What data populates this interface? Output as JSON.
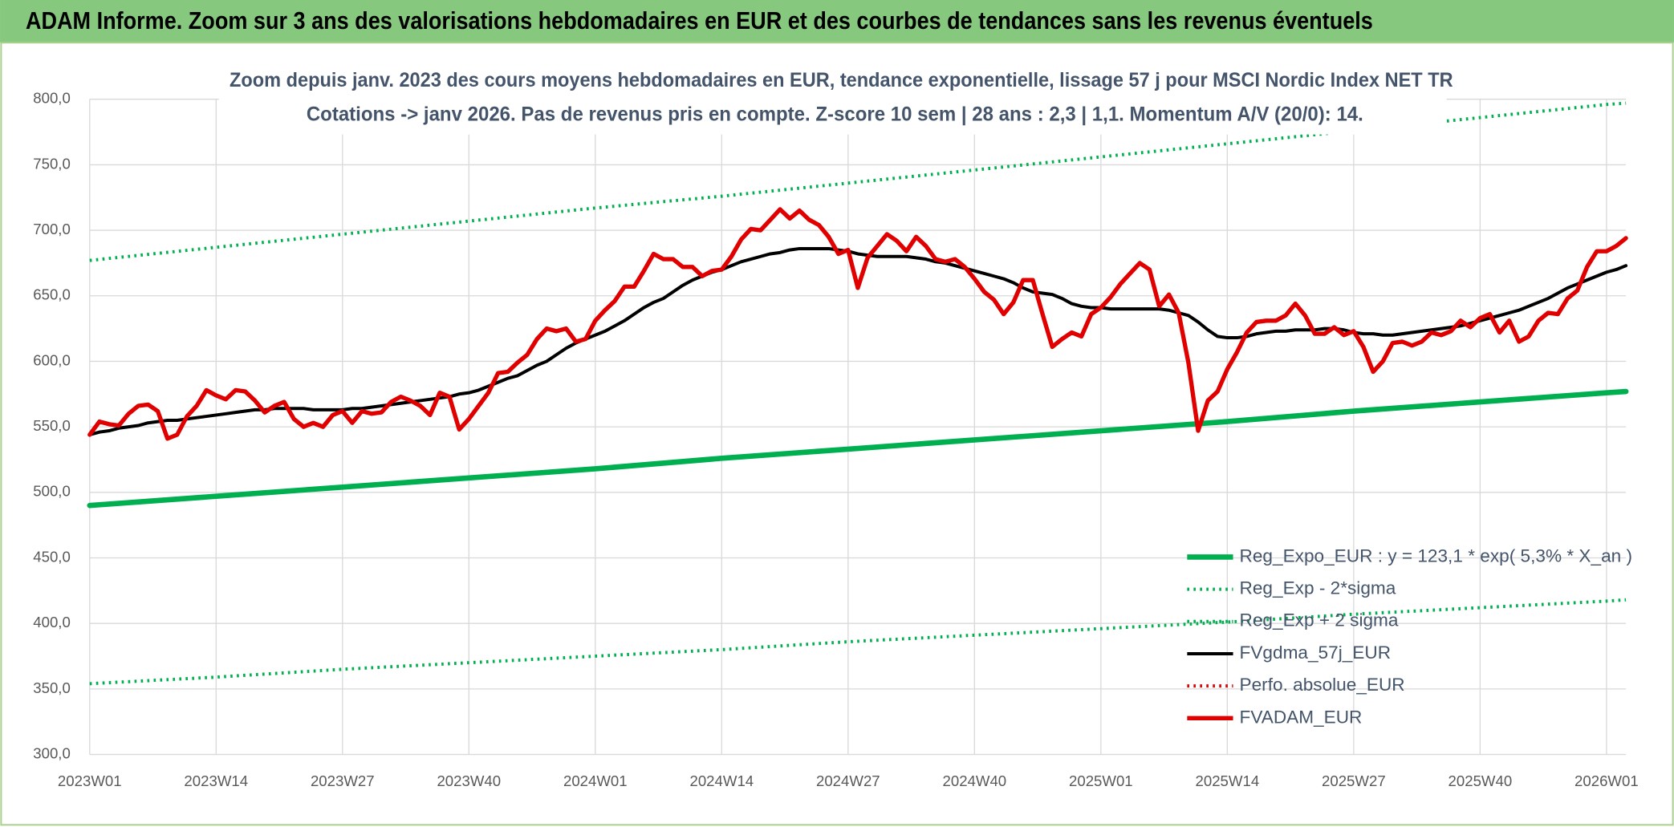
{
  "header": {
    "title": "ADAM Informe. Zoom sur 3 ans des valorisations hebdomadaires en EUR et des courbes de tendances sans les revenus éventuels"
  },
  "chart_data": {
    "type": "line",
    "title": "Zoom depuis janv. 2023 des cours moyens hebdomadaires en EUR, tendance exponentielle, lissage 57 j pour MSCI Nordic Index NET TR",
    "subtitle": "Cotations -> janv 2026. Pas de revenus pris en compte. Z-score 10 sem | 28 ans : 2,3 | 1,1. Momentum A/V (20/0): 14.",
    "categories": [
      "2023W01",
      null,
      null,
      null,
      null,
      null,
      null,
      null,
      null,
      null,
      null,
      null,
      null,
      "2023W14",
      null,
      null,
      null,
      null,
      null,
      null,
      null,
      null,
      null,
      null,
      null,
      null,
      "2023W27",
      null,
      null,
      null,
      null,
      null,
      null,
      null,
      null,
      null,
      null,
      null,
      null,
      "2023W40",
      null,
      null,
      null,
      null,
      null,
      null,
      null,
      null,
      null,
      null,
      null,
      null,
      "2024W01",
      null,
      null,
      null,
      null,
      null,
      null,
      null,
      null,
      null,
      null,
      null,
      null,
      "2024W14",
      null,
      null,
      null,
      null,
      null,
      null,
      null,
      null,
      null,
      null,
      null,
      null,
      "2024W27",
      null,
      null,
      null,
      null,
      null,
      null,
      null,
      null,
      null,
      null,
      null,
      null,
      "2024W40",
      null,
      null,
      null,
      null,
      null,
      null,
      null,
      null,
      null,
      null,
      null,
      null,
      "2025W01",
      null,
      null,
      null,
      null,
      null,
      null,
      null,
      null,
      null,
      null,
      null,
      null,
      "2025W14",
      null,
      null,
      null,
      null,
      null,
      null,
      null,
      null,
      null,
      null,
      null,
      null,
      "2025W27",
      null,
      null,
      null,
      null,
      null,
      null,
      null,
      null,
      null,
      null,
      null,
      null,
      "2025W40",
      null,
      null,
      null,
      null,
      null,
      null,
      null,
      null,
      null,
      null,
      null,
      null,
      "2026W01",
      null,
      null
    ],
    "ylim": [
      300,
      800
    ],
    "yticks": [
      {
        "value": 300,
        "label": "300,0"
      },
      {
        "value": 350,
        "label": "350,0"
      },
      {
        "value": 400,
        "label": "400,0"
      },
      {
        "value": 450,
        "label": "450,0"
      },
      {
        "value": 500,
        "label": "500,0"
      },
      {
        "value": 550,
        "label": "550,0"
      },
      {
        "value": 600,
        "label": "600,0"
      },
      {
        "value": 650,
        "label": "650,0"
      },
      {
        "value": 700,
        "label": "700,0"
      },
      {
        "value": 750,
        "label": "750,0"
      },
      {
        "value": 800,
        "label": "800,0"
      }
    ],
    "grid": true,
    "legend": "lower right",
    "series": [
      {
        "name": "Reg_Expo_EUR : y = 123,1 * exp( 5,3% *  X_an )",
        "color": "#00b050",
        "style": "solid",
        "width": 5,
        "x": [
          0,
          13,
          26,
          39,
          52,
          65,
          78,
          91,
          104,
          117,
          130,
          143,
          156,
          158
        ],
        "values": [
          490,
          497,
          504,
          511,
          518,
          526,
          533,
          540,
          547,
          554,
          562,
          569,
          576,
          577
        ]
      },
      {
        "name": "Reg_Exp - 2*sigma",
        "color": "#00b050",
        "style": "dotted",
        "width": 3,
        "x": [
          0,
          13,
          26,
          39,
          52,
          65,
          78,
          91,
          104,
          117,
          130,
          143,
          156,
          158
        ],
        "values": [
          354,
          359,
          365,
          370,
          375,
          380,
          386,
          391,
          396,
          401,
          407,
          412,
          417,
          418
        ]
      },
      {
        "name": "Reg_Exp + 2 sigma",
        "color": "#00b050",
        "style": "dotted",
        "width": 3,
        "x": [
          0,
          13,
          26,
          39,
          52,
          65,
          78,
          91,
          104,
          117,
          130,
          143,
          156,
          158
        ],
        "values": [
          677,
          687,
          697,
          707,
          717,
          726,
          736,
          746,
          756,
          766,
          776,
          786,
          796,
          797
        ]
      },
      {
        "name": "FVgdma_57j_EUR",
        "color": "#000000",
        "style": "solid",
        "width": 3,
        "values": [
          544,
          546,
          547,
          549,
          550,
          551,
          553,
          554,
          555,
          555,
          556,
          557,
          558,
          559,
          560,
          561,
          562,
          563,
          563,
          564,
          564,
          564,
          564,
          563,
          563,
          563,
          563,
          564,
          564,
          565,
          566,
          567,
          568,
          569,
          570,
          571,
          572,
          573,
          575,
          576,
          578,
          581,
          584,
          587,
          589,
          593,
          597,
          600,
          605,
          610,
          614,
          617,
          620,
          623,
          627,
          631,
          636,
          641,
          645,
          648,
          653,
          658,
          662,
          665,
          668,
          670,
          673,
          676,
          678,
          680,
          682,
          683,
          685,
          686,
          686,
          686,
          686,
          685,
          684,
          682,
          681,
          680,
          680,
          680,
          680,
          679,
          678,
          676,
          675,
          673,
          671,
          669,
          667,
          665,
          663,
          660,
          656,
          653,
          652,
          651,
          648,
          644,
          642,
          641,
          641,
          640,
          640,
          640,
          640,
          640,
          640,
          639,
          637,
          635,
          630,
          624,
          619,
          618,
          618,
          619,
          621,
          622,
          623,
          623,
          624,
          624,
          624,
          625,
          625,
          624,
          622,
          621,
          621,
          620,
          620,
          621,
          622,
          623,
          624,
          625,
          626,
          627,
          629,
          631,
          633,
          635,
          637,
          639,
          642,
          645,
          648,
          652,
          656,
          659,
          662,
          665,
          668,
          670,
          673
        ]
      },
      {
        "name": "Perfo. absolue_EUR",
        "color": "#e00000",
        "style": "dotted",
        "width": 3
      },
      {
        "name": "FVADAM_EUR",
        "color": "#e00000",
        "style": "solid",
        "width": 4,
        "values": [
          544,
          554,
          552,
          551,
          560,
          566,
          567,
          562,
          541,
          544,
          558,
          566,
          578,
          574,
          571,
          578,
          577,
          570,
          561,
          566,
          569,
          556,
          550,
          553,
          550,
          559,
          562,
          553,
          562,
          560,
          561,
          569,
          573,
          570,
          566,
          559,
          576,
          573,
          548,
          556,
          566,
          576,
          591,
          592,
          599,
          605,
          617,
          625,
          623,
          625,
          615,
          617,
          631,
          639,
          646,
          657,
          657,
          669,
          682,
          678,
          678,
          672,
          672,
          665,
          669,
          670,
          680,
          693,
          701,
          700,
          708,
          716,
          709,
          715,
          708,
          704,
          695,
          682,
          685,
          656,
          679,
          688,
          697,
          692,
          684,
          695,
          688,
          678,
          676,
          678,
          672,
          663,
          653,
          647,
          636,
          645,
          662,
          662,
          636,
          611,
          617,
          622,
          619,
          636,
          641,
          649,
          659,
          667,
          675,
          670,
          642,
          651,
          637,
          599,
          547,
          570,
          577,
          594,
          607,
          622,
          630,
          631,
          631,
          635,
          644,
          635,
          621,
          621,
          626,
          620,
          623,
          611,
          592,
          600,
          614,
          615,
          612,
          615,
          622,
          620,
          623,
          631,
          626,
          633,
          636,
          622,
          631,
          615,
          619,
          631,
          637,
          636,
          648,
          654,
          672,
          684,
          684,
          688,
          694
        ]
      }
    ]
  }
}
